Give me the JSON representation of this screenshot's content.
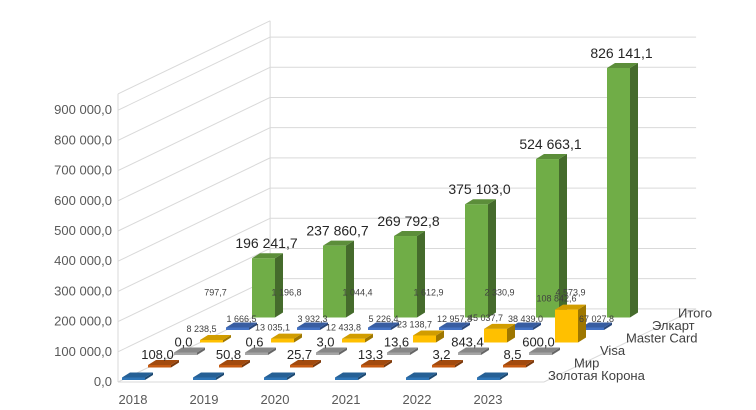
{
  "chart_data": {
    "type": "bar",
    "subtype": "3d-column",
    "title": "",
    "xlabel": "",
    "ylabel": "",
    "ylim": [
      0,
      900000
    ],
    "ytick_labels": [
      "0,0",
      "100 000,0",
      "200 000,0",
      "300 000,0",
      "400 000,0",
      "500 000,0",
      "600 000,0",
      "700 000,0",
      "800 000,0",
      "900 000,0"
    ],
    "categories": [
      "2018",
      "2019",
      "2020",
      "2021",
      "2022",
      "2023"
    ],
    "series": [
      {
        "name": "Золотая Корона",
        "color": "#2E75B6",
        "values": [
          0,
          0,
          0,
          0,
          0,
          0
        ],
        "labels": [
          "",
          "",
          "",
          "",
          "",
          ""
        ]
      },
      {
        "name": "Мир",
        "color": "#C55A11",
        "values": [
          108.0,
          50.8,
          25.7,
          13.3,
          3.2,
          8.5
        ],
        "labels": [
          "108,0",
          "50,8",
          "25,7",
          "13,3",
          "3,2",
          "8,5"
        ]
      },
      {
        "name": "Visa",
        "color": "#A5A5A5",
        "values": [
          0.0,
          0.6,
          3.0,
          13.6,
          843.4,
          600.0
        ],
        "labels": [
          "0,0",
          "0,6",
          "3,0",
          "13,6",
          "843,4",
          "600,0"
        ]
      },
      {
        "name": "Master Card",
        "color": "#FFC000",
        "values": [
          8238.5,
          13035.1,
          12433.8,
          23138.7,
          45037.7,
          108842.6
        ],
        "labels": [
          "8 238,5",
          "13 035,1",
          "12 433,8",
          "23 138,7",
          "45 037,7",
          "108 842,6"
        ]
      },
      {
        "name": "Элкарт",
        "color": "#4472C4",
        "values": [
          797.7,
          1196.8,
          1044.4,
          1612.9,
          2330.9,
          4573.9
        ],
        "labels": [
          "797,7",
          "1 196,8",
          "1 044,4",
          "1 612,9",
          "2 330,9",
          "4 573,9"
        ]
      },
      {
        "name": "Итого",
        "color": "#70AD47",
        "values": [
          196241.7,
          237860.7,
          269792.8,
          375103.0,
          524663.1,
          826141.1
        ],
        "labels": [
          "196 241,7",
          "237 860,7",
          "269 792,8",
          "375 103,0",
          "524 663,1",
          "826 141,1"
        ]
      }
    ],
    "extra_labels": {
      "series": "Элкарт",
      "labels": [
        "1 666,5",
        "3 932,3",
        "5 226,4",
        "12 957,8",
        "38 439,0",
        "67 027,8"
      ]
    }
  }
}
